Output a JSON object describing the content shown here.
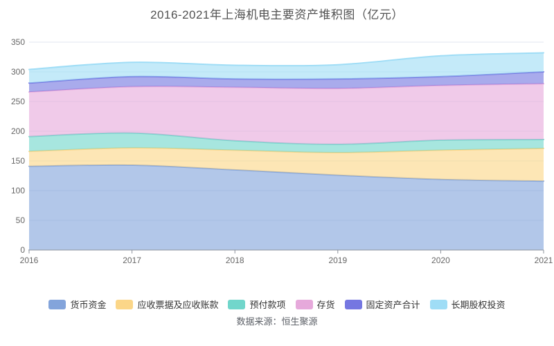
{
  "title": "2016-2021年上海机电主要资产堆积图（亿元）",
  "source": "数据来源：恒生聚源",
  "chart_data": {
    "type": "area",
    "stacked": true,
    "smooth": true,
    "title": "2016-2021年上海机电主要资产堆积图（亿元）",
    "categories": [
      "2016",
      "2017",
      "2018",
      "2019",
      "2020",
      "2021"
    ],
    "series": [
      {
        "name": "货币资金",
        "color": "#83A4DB",
        "values": [
          141,
          143,
          135,
          126,
          119,
          116
        ]
      },
      {
        "name": "应收票据及应收账款",
        "color": "#FBD688",
        "values": [
          25,
          29,
          33,
          38,
          49,
          55
        ]
      },
      {
        "name": "预付款项",
        "color": "#71D6CB",
        "values": [
          25,
          25,
          16,
          14,
          17,
          15
        ]
      },
      {
        "name": "存货",
        "color": "#E6A9DB",
        "values": [
          75,
          78,
          90,
          94,
          92,
          94
        ]
      },
      {
        "name": "固定资产合计",
        "color": "#7577E1",
        "values": [
          15,
          17,
          14,
          16,
          15,
          20
        ]
      },
      {
        "name": "长期股权投资",
        "color": "#9FDDF6",
        "values": [
          23,
          24,
          23,
          24,
          35,
          32
        ]
      }
    ],
    "totals": [
      304,
      316,
      311,
      312,
      327,
      332
    ],
    "xlabel": "",
    "ylabel": "",
    "ylim": [
      0,
      350
    ],
    "y_ticks": [
      0,
      50,
      100,
      150,
      200,
      250,
      300,
      350
    ],
    "grid": true,
    "legend_position": "bottom",
    "fill_opacity": 0.62,
    "line_width": 2,
    "grid_color": "#E0E6F1",
    "axis_color": "#8B909A",
    "label_color": "#666666"
  }
}
